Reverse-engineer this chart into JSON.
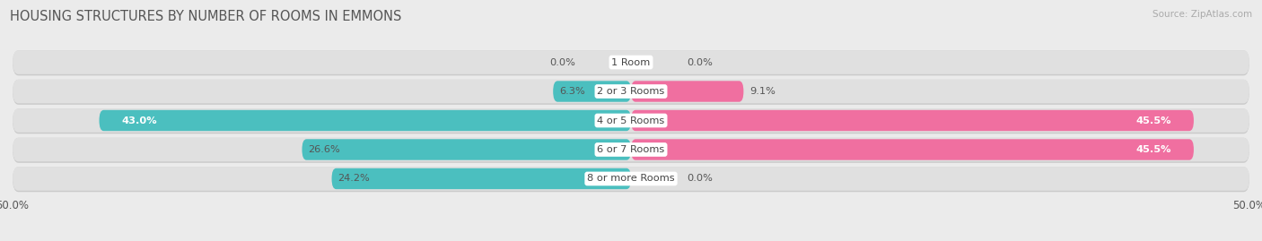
{
  "title": "HOUSING STRUCTURES BY NUMBER OF ROOMS IN EMMONS",
  "source": "Source: ZipAtlas.com",
  "categories": [
    "1 Room",
    "2 or 3 Rooms",
    "4 or 5 Rooms",
    "6 or 7 Rooms",
    "8 or more Rooms"
  ],
  "owner_values": [
    0.0,
    6.3,
    43.0,
    26.6,
    24.2
  ],
  "renter_values": [
    0.0,
    9.1,
    45.5,
    45.5,
    0.0
  ],
  "owner_color": "#4BBFBF",
  "renter_color": "#F06FA0",
  "background_color": "#ebebeb",
  "bar_bg_color": "#e0e0e0",
  "bar_shadow_color": "#cacaca",
  "xlim": 50.0,
  "title_fontsize": 10.5,
  "label_fontsize": 8.5,
  "axis_label_fontsize": 8.5
}
